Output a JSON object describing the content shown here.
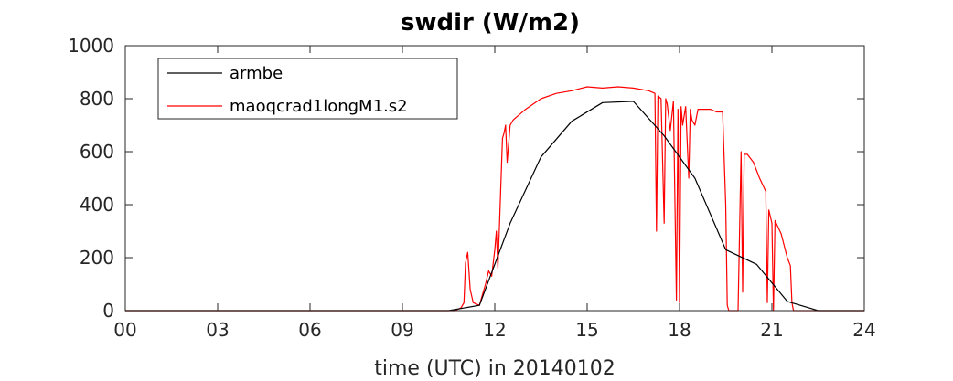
{
  "chart_data": {
    "type": "line",
    "title": "swdir  (W/m2)",
    "xlabel": "time (UTC) in 20140102",
    "ylabel": "",
    "xlim": [
      0,
      24
    ],
    "ylim": [
      0,
      1000
    ],
    "xticks": [
      0,
      3,
      6,
      9,
      12,
      15,
      18,
      21,
      24
    ],
    "xtick_labels": [
      "00",
      "03",
      "06",
      "09",
      "12",
      "15",
      "18",
      "21",
      "24"
    ],
    "yticks": [
      0,
      200,
      400,
      600,
      800,
      1000
    ],
    "ytick_labels": [
      "0",
      "200",
      "400",
      "600",
      "800",
      "1000"
    ],
    "grid": false,
    "legend_position": "top-left",
    "series": [
      {
        "name": "armbe",
        "color": "#000000",
        "x": [
          0,
          10.5,
          11.5,
          12.5,
          13.5,
          14.5,
          15.5,
          16.5,
          17.5,
          18.5,
          19.5,
          20.5,
          21.5,
          22.5,
          24
        ],
        "y": [
          0,
          0,
          20,
          330,
          580,
          715,
          785,
          790,
          660,
          500,
          230,
          175,
          35,
          0,
          0
        ]
      },
      {
        "name": "maoqcrad1longM1.s2",
        "color": "#ff0000",
        "x": [
          0,
          10.7,
          10.9,
          11.0,
          11.05,
          11.12,
          11.2,
          11.3,
          11.5,
          11.6,
          11.7,
          11.8,
          11.9,
          12.0,
          12.05,
          12.1,
          12.15,
          12.2,
          12.25,
          12.3,
          12.35,
          12.4,
          12.5,
          12.6,
          12.8,
          13.0,
          13.5,
          14.0,
          14.5,
          15.0,
          15.5,
          16.0,
          16.5,
          17.0,
          17.2,
          17.25,
          17.3,
          17.4,
          17.5,
          17.55,
          17.6,
          17.7,
          17.8,
          17.9,
          17.95,
          18.0,
          18.05,
          18.1,
          18.2,
          18.3,
          18.35,
          18.4,
          18.5,
          18.6,
          18.8,
          19.0,
          19.2,
          19.4,
          19.5,
          19.55,
          19.6,
          19.7,
          19.8,
          19.9,
          20.0,
          20.05,
          20.1,
          20.2,
          20.4,
          20.6,
          20.8,
          20.85,
          20.9,
          21.0,
          21.05,
          21.1,
          21.3,
          21.5,
          21.6,
          21.65,
          21.7,
          21.8,
          24
        ],
        "y": [
          0,
          0,
          10,
          30,
          180,
          220,
          80,
          30,
          20,
          60,
          100,
          150,
          130,
          230,
          300,
          160,
          310,
          480,
          650,
          670,
          700,
          560,
          700,
          720,
          740,
          760,
          800,
          820,
          830,
          845,
          840,
          845,
          840,
          830,
          820,
          300,
          810,
          800,
          330,
          800,
          780,
          680,
          790,
          40,
          760,
          30,
          770,
          700,
          770,
          500,
          760,
          720,
          700,
          760,
          760,
          760,
          750,
          750,
          400,
          20,
          0,
          0,
          0,
          0,
          600,
          70,
          590,
          590,
          560,
          500,
          450,
          30,
          380,
          330,
          0,
          340,
          290,
          200,
          170,
          30,
          0,
          0,
          0
        ]
      }
    ]
  }
}
